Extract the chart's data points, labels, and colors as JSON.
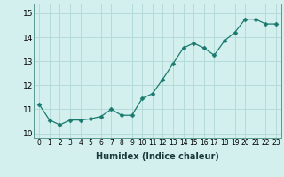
{
  "x": [
    0,
    1,
    2,
    3,
    4,
    5,
    6,
    7,
    8,
    9,
    10,
    11,
    12,
    13,
    14,
    15,
    16,
    17,
    18,
    19,
    20,
    21,
    22,
    23
  ],
  "y": [
    11.2,
    10.55,
    10.35,
    10.55,
    10.55,
    10.6,
    10.7,
    11.0,
    10.75,
    10.75,
    11.45,
    11.65,
    12.25,
    12.9,
    13.55,
    13.75,
    13.55,
    13.25,
    13.85,
    14.2,
    14.75,
    14.75,
    14.55,
    14.55
  ],
  "line_color": "#1a7a6e",
  "marker": "D",
  "marker_size": 2.5,
  "bg_color": "#d4f0ee",
  "grid_color": "#b0d8d5",
  "xlabel": "Humidex (Indice chaleur)",
  "xlabel_fontsize": 7,
  "xtick_fontsize": 5.5,
  "ytick_fontsize": 6.5,
  "ylim": [
    9.8,
    15.4
  ],
  "yticks": [
    10,
    11,
    12,
    13,
    14,
    15
  ],
  "xticks": [
    0,
    1,
    2,
    3,
    4,
    5,
    6,
    7,
    8,
    9,
    10,
    11,
    12,
    13,
    14,
    15,
    16,
    17,
    18,
    19,
    20,
    21,
    22,
    23
  ],
  "xlim": [
    -0.5,
    23.5
  ]
}
